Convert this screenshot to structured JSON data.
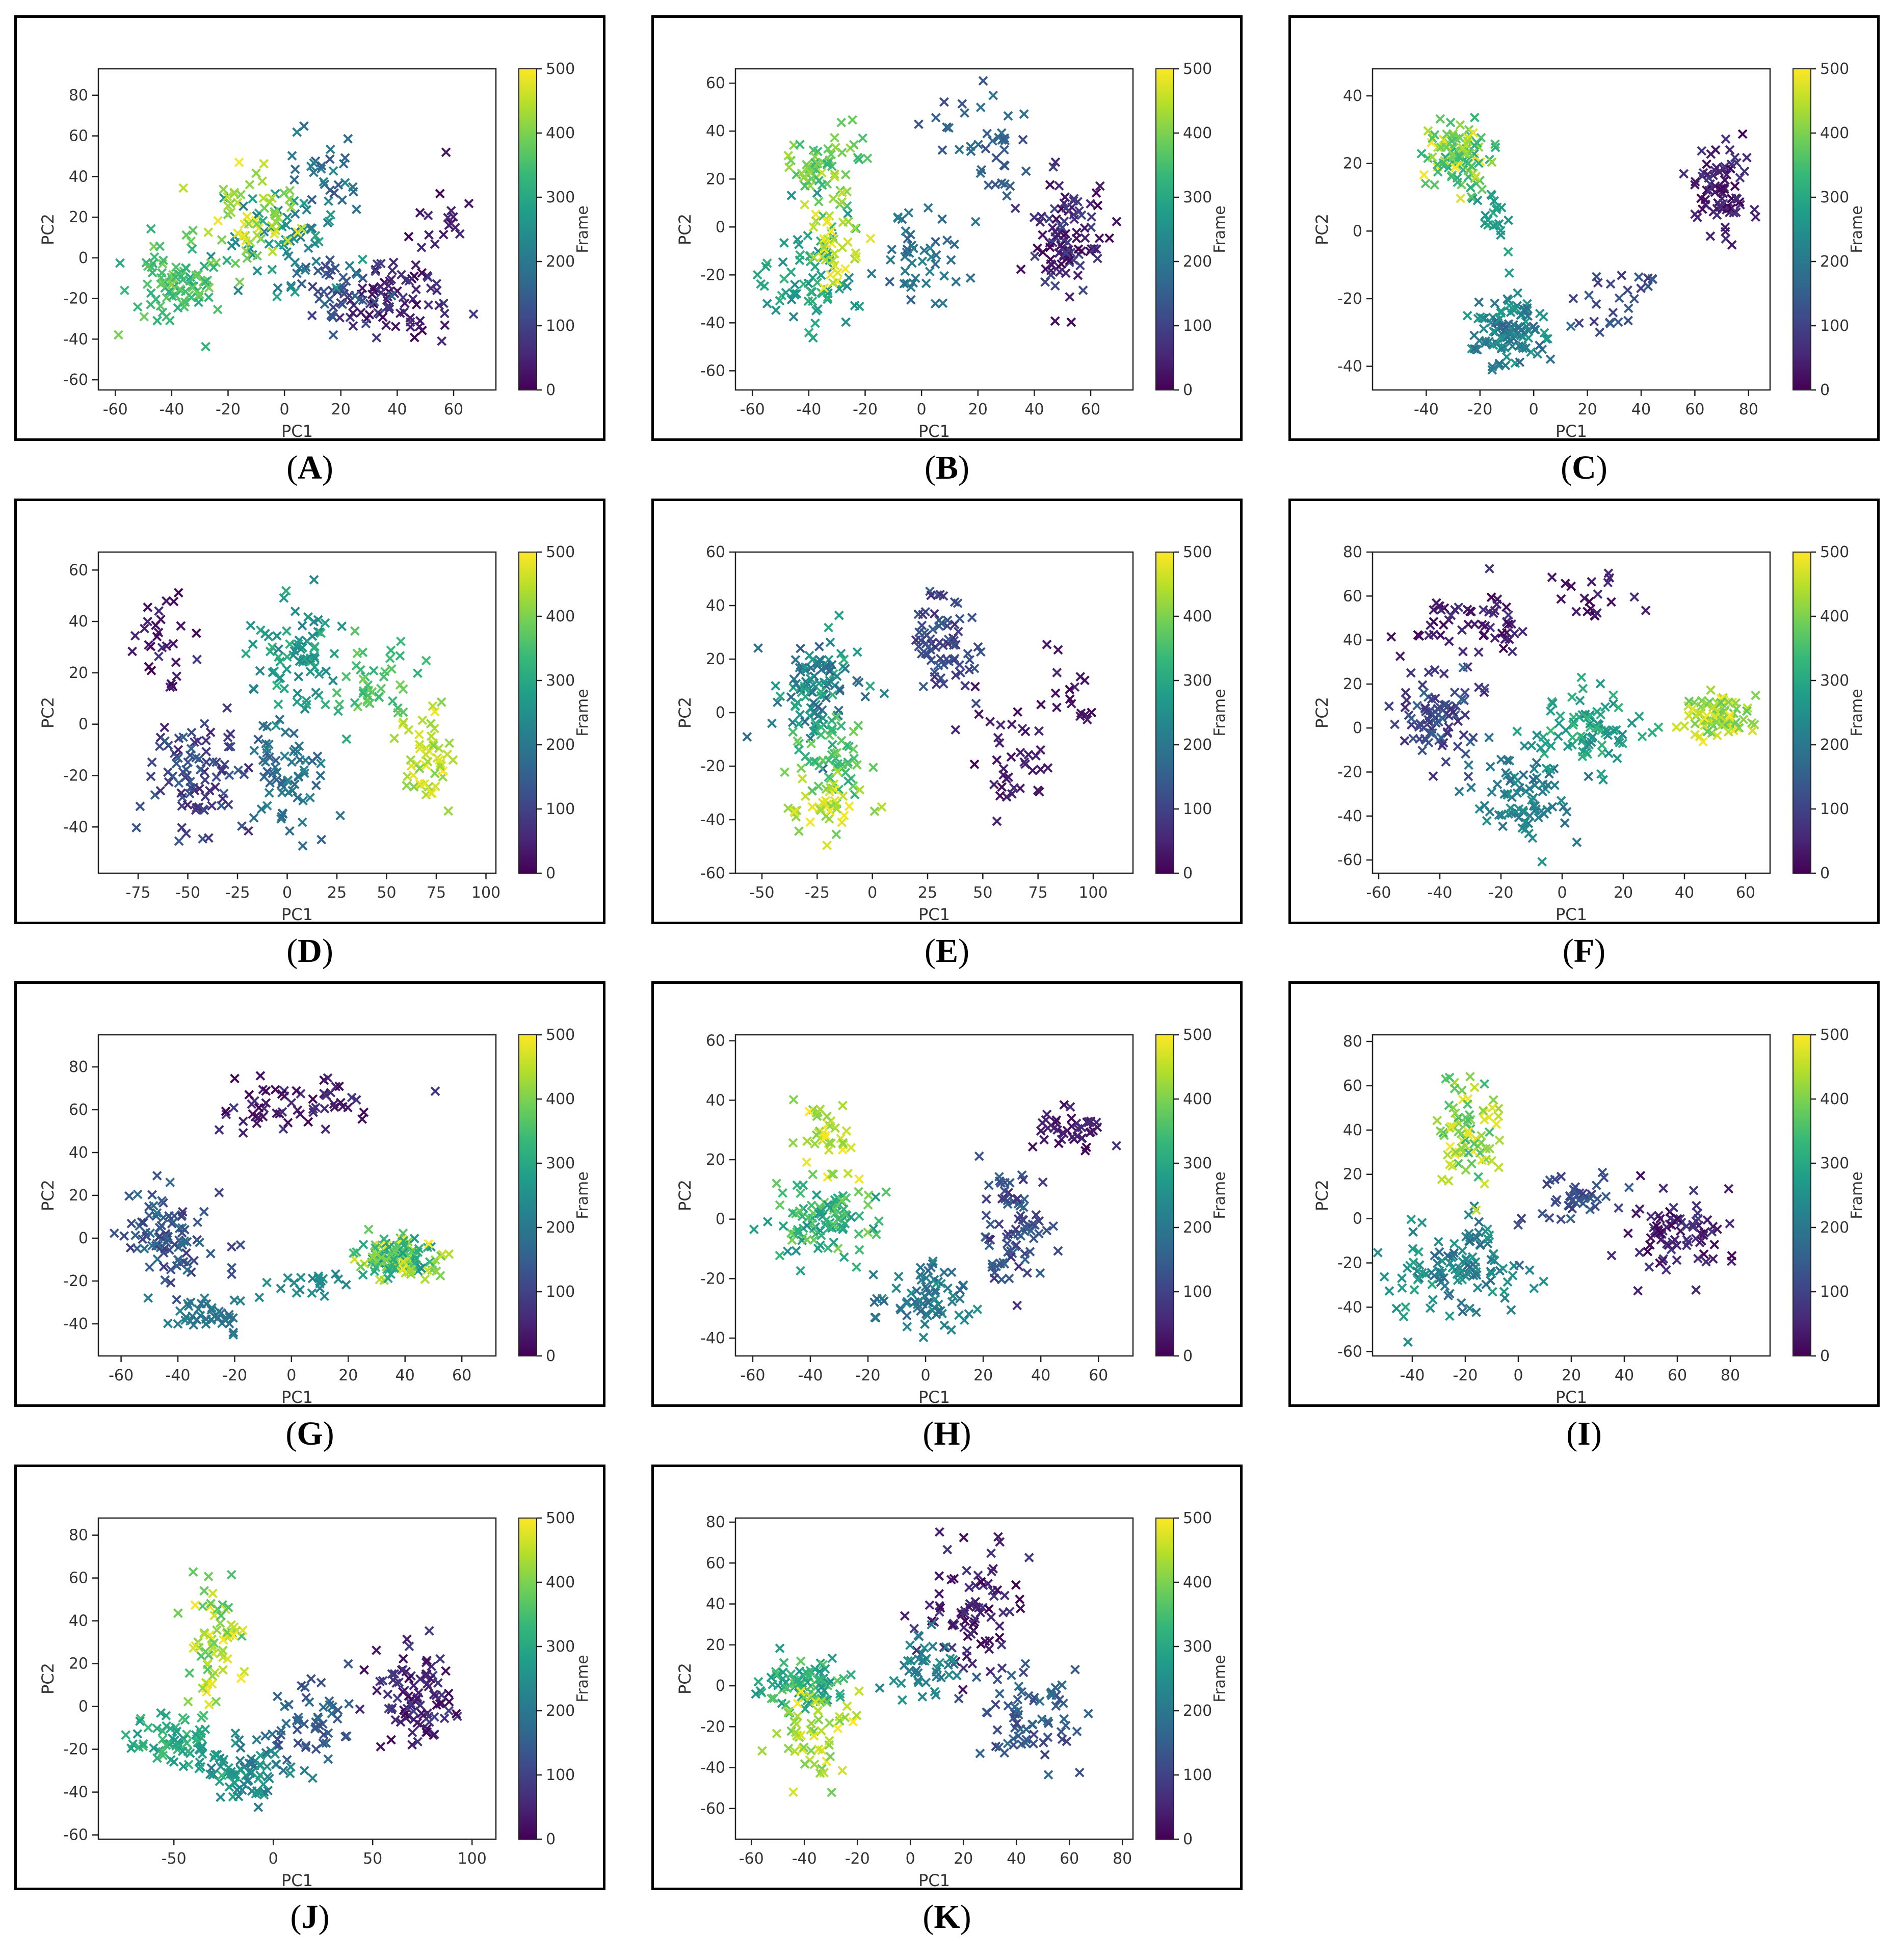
{
  "colormap": [
    "#440154",
    "#482878",
    "#3e4989",
    "#31688e",
    "#26828e",
    "#1f9e89",
    "#35b779",
    "#6ece58",
    "#b5de2b",
    "#fde725"
  ],
  "marker_color_note": "viridis",
  "chart_data": [
    {
      "id": "A",
      "caption": "A",
      "type": "scatter",
      "xlabel": "PC1",
      "ylabel": "PC2",
      "colorbar_label": "Frame",
      "colorbar_range": [
        0,
        500
      ],
      "colorbar_ticks": [
        0,
        100,
        200,
        300,
        400,
        500
      ],
      "xlim": [
        -66,
        75
      ],
      "ylim": [
        -65,
        93
      ],
      "xticks": [
        -60,
        -40,
        -20,
        0,
        20,
        40,
        60
      ],
      "yticks": [
        -60,
        -40,
        -20,
        0,
        20,
        40,
        60,
        80
      ],
      "marker": "x",
      "clusters": [
        {
          "cx": 40,
          "cy": -20,
          "sx": 13,
          "sy": 14,
          "n": 80,
          "f0": 0,
          "f1": 90
        },
        {
          "cx": 55,
          "cy": 25,
          "sx": 6,
          "sy": 15,
          "n": 15,
          "f0": 0,
          "f1": 60
        },
        {
          "cx": 20,
          "cy": -15,
          "sx": 12,
          "sy": 15,
          "n": 40,
          "f0": 90,
          "f1": 170
        },
        {
          "cx": 15,
          "cy": 45,
          "sx": 10,
          "sy": 20,
          "n": 30,
          "f0": 130,
          "f1": 230
        },
        {
          "cx": 0,
          "cy": 10,
          "sx": 14,
          "sy": 15,
          "n": 60,
          "f0": 200,
          "f1": 300
        },
        {
          "cx": -35,
          "cy": -10,
          "sx": 10,
          "sy": 12,
          "n": 70,
          "f0": 300,
          "f1": 400
        },
        {
          "cx": -10,
          "cy": 20,
          "sx": 12,
          "sy": 13,
          "n": 55,
          "f0": 380,
          "f1": 500
        },
        {
          "cx": -40,
          "cy": -25,
          "sx": 10,
          "sy": 15,
          "n": 20,
          "f0": 320,
          "f1": 420
        }
      ]
    },
    {
      "id": "B",
      "caption": "B",
      "type": "scatter",
      "xlabel": "PC1",
      "ylabel": "PC2",
      "colorbar_label": "Frame",
      "colorbar_range": [
        0,
        500
      ],
      "colorbar_ticks": [
        0,
        100,
        200,
        300,
        400,
        500
      ],
      "xlim": [
        -66,
        75
      ],
      "ylim": [
        -68,
        66
      ],
      "xticks": [
        -60,
        -40,
        -20,
        0,
        20,
        40,
        60
      ],
      "yticks": [
        -60,
        -40,
        -20,
        0,
        20,
        40,
        60
      ],
      "marker": "x",
      "clusters": [
        {
          "cx": 52,
          "cy": -5,
          "sx": 9,
          "sy": 15,
          "n": 100,
          "f0": 0,
          "f1": 110
        },
        {
          "cx": 25,
          "cy": 35,
          "sx": 14,
          "sy": 14,
          "n": 40,
          "f0": 110,
          "f1": 190
        },
        {
          "cx": 0,
          "cy": -15,
          "sx": 10,
          "sy": 15,
          "n": 45,
          "f0": 150,
          "f1": 230
        },
        {
          "cx": -40,
          "cy": -20,
          "sx": 12,
          "sy": 15,
          "n": 70,
          "f0": 230,
          "f1": 330
        },
        {
          "cx": -35,
          "cy": 25,
          "sx": 8,
          "sy": 12,
          "n": 60,
          "f0": 330,
          "f1": 430
        },
        {
          "cx": -30,
          "cy": -5,
          "sx": 8,
          "sy": 12,
          "n": 40,
          "f0": 420,
          "f1": 500
        }
      ]
    },
    {
      "id": "C",
      "caption": "C",
      "type": "scatter",
      "xlabel": "PC1",
      "ylabel": "PC2",
      "colorbar_label": "Frame",
      "colorbar_range": [
        0,
        500
      ],
      "colorbar_ticks": [
        0,
        100,
        200,
        300,
        400,
        500
      ],
      "xlim": [
        -60,
        88
      ],
      "ylim": [
        -47,
        48
      ],
      "xticks": [
        -40,
        -20,
        0,
        20,
        40,
        60,
        80
      ],
      "yticks": [
        -40,
        -20,
        0,
        20,
        40
      ],
      "marker": "x",
      "clusters": [
        {
          "cx": 70,
          "cy": 12,
          "sx": 8,
          "sy": 9,
          "n": 80,
          "f0": 0,
          "f1": 80
        },
        {
          "cx": 30,
          "cy": -20,
          "sx": 15,
          "sy": 8,
          "n": 25,
          "f0": 80,
          "f1": 150
        },
        {
          "cx": -10,
          "cy": -30,
          "sx": 9,
          "sy": 7,
          "n": 110,
          "f0": 150,
          "f1": 280
        },
        {
          "cx": -15,
          "cy": 5,
          "sx": 5,
          "sy": 10,
          "n": 20,
          "f0": 250,
          "f1": 320
        },
        {
          "cx": -28,
          "cy": 22,
          "sx": 10,
          "sy": 8,
          "n": 100,
          "f0": 300,
          "f1": 500
        }
      ]
    },
    {
      "id": "D",
      "caption": "D",
      "type": "scatter",
      "xlabel": "PC1",
      "ylabel": "PC2",
      "colorbar_label": "Frame",
      "colorbar_range": [
        0,
        500
      ],
      "colorbar_ticks": [
        0,
        100,
        200,
        300,
        400,
        500
      ],
      "xlim": [
        -95,
        105
      ],
      "ylim": [
        -58,
        67
      ],
      "xticks": [
        -75,
        -50,
        -25,
        0,
        25,
        50,
        75,
        100
      ],
      "yticks": [
        -40,
        -20,
        0,
        20,
        40,
        60
      ],
      "marker": "x",
      "clusters": [
        {
          "cx": -65,
          "cy": 30,
          "sx": 12,
          "sy": 15,
          "n": 30,
          "f0": 0,
          "f1": 80
        },
        {
          "cx": -45,
          "cy": -20,
          "sx": 18,
          "sy": 13,
          "n": 90,
          "f0": 50,
          "f1": 160
        },
        {
          "cx": 0,
          "cy": -20,
          "sx": 15,
          "sy": 13,
          "n": 60,
          "f0": 150,
          "f1": 230
        },
        {
          "cx": 5,
          "cy": 25,
          "sx": 15,
          "sy": 15,
          "n": 80,
          "f0": 220,
          "f1": 330
        },
        {
          "cx": 45,
          "cy": 15,
          "sx": 15,
          "sy": 10,
          "n": 40,
          "f0": 320,
          "f1": 400
        },
        {
          "cx": 70,
          "cy": -15,
          "sx": 10,
          "sy": 12,
          "n": 50,
          "f0": 400,
          "f1": 500
        }
      ]
    },
    {
      "id": "E",
      "caption": "E",
      "type": "scatter",
      "xlabel": "PC1",
      "ylabel": "PC2",
      "colorbar_label": "Frame",
      "colorbar_range": [
        0,
        500
      ],
      "colorbar_ticks": [
        0,
        100,
        200,
        300,
        400,
        500
      ],
      "xlim": [
        -62,
        118
      ],
      "ylim": [
        -60,
        60
      ],
      "xticks": [
        -50,
        -25,
        0,
        25,
        50,
        75,
        100
      ],
      "yticks": [
        -60,
        -40,
        -20,
        0,
        20,
        40,
        60
      ],
      "marker": "x",
      "clusters": [
        {
          "cx": 65,
          "cy": -15,
          "sx": 15,
          "sy": 15,
          "n": 40,
          "f0": 0,
          "f1": 60
        },
        {
          "cx": 90,
          "cy": 5,
          "sx": 8,
          "sy": 12,
          "n": 15,
          "f0": 0,
          "f1": 50
        },
        {
          "cx": 30,
          "cy": 25,
          "sx": 10,
          "sy": 12,
          "n": 70,
          "f0": 60,
          "f1": 150
        },
        {
          "cx": -25,
          "cy": 10,
          "sx": 12,
          "sy": 15,
          "n": 100,
          "f0": 150,
          "f1": 320
        },
        {
          "cx": -20,
          "cy": -15,
          "sx": 10,
          "sy": 12,
          "n": 60,
          "f0": 300,
          "f1": 400
        },
        {
          "cx": -22,
          "cy": -35,
          "sx": 10,
          "sy": 8,
          "n": 40,
          "f0": 400,
          "f1": 500
        }
      ]
    },
    {
      "id": "F",
      "caption": "F",
      "type": "scatter",
      "xlabel": "PC1",
      "ylabel": "PC2",
      "colorbar_label": "Frame",
      "colorbar_range": [
        0,
        500
      ],
      "colorbar_ticks": [
        0,
        100,
        200,
        300,
        400,
        500
      ],
      "xlim": [
        -62,
        68
      ],
      "ylim": [
        -66,
        80
      ],
      "xticks": [
        -60,
        -40,
        -20,
        0,
        20,
        40,
        60
      ],
      "yticks": [
        -60,
        -40,
        -20,
        0,
        20,
        40,
        60,
        80
      ],
      "marker": "x",
      "clusters": [
        {
          "cx": -30,
          "cy": 45,
          "sx": 14,
          "sy": 12,
          "n": 60,
          "f0": 0,
          "f1": 80
        },
        {
          "cx": 10,
          "cy": 60,
          "sx": 10,
          "sy": 8,
          "n": 20,
          "f0": 0,
          "f1": 60
        },
        {
          "cx": -40,
          "cy": 5,
          "sx": 10,
          "sy": 15,
          "n": 80,
          "f0": 60,
          "f1": 170
        },
        {
          "cx": -12,
          "cy": -30,
          "sx": 10,
          "sy": 15,
          "n": 80,
          "f0": 170,
          "f1": 260
        },
        {
          "cx": 10,
          "cy": 0,
          "sx": 12,
          "sy": 12,
          "n": 80,
          "f0": 240,
          "f1": 340
        },
        {
          "cx": 50,
          "cy": 5,
          "sx": 8,
          "sy": 6,
          "n": 80,
          "f0": 370,
          "f1": 500
        }
      ]
    },
    {
      "id": "G",
      "caption": "G",
      "type": "scatter",
      "xlabel": "PC1",
      "ylabel": "PC2",
      "colorbar_label": "Frame",
      "colorbar_range": [
        0,
        500
      ],
      "colorbar_ticks": [
        0,
        100,
        200,
        300,
        400,
        500
      ],
      "xlim": [
        -68,
        72
      ],
      "ylim": [
        -55,
        95
      ],
      "xticks": [
        -60,
        -40,
        -20,
        0,
        20,
        40,
        60
      ],
      "yticks": [
        -40,
        -20,
        0,
        20,
        40,
        60,
        80
      ],
      "marker": "x",
      "clusters": [
        {
          "cx": 0,
          "cy": 62,
          "sx": 20,
          "sy": 8,
          "n": 60,
          "f0": 0,
          "f1": 80
        },
        {
          "cx": -42,
          "cy": 0,
          "sx": 10,
          "sy": 13,
          "n": 90,
          "f0": 80,
          "f1": 190
        },
        {
          "cx": -30,
          "cy": -35,
          "sx": 10,
          "sy": 6,
          "n": 40,
          "f0": 180,
          "f1": 230
        },
        {
          "cx": 5,
          "cy": -22,
          "sx": 12,
          "sy": 4,
          "n": 20,
          "f0": 220,
          "f1": 260
        },
        {
          "cx": 38,
          "cy": -10,
          "sx": 8,
          "sy": 6,
          "n": 140,
          "f0": 250,
          "f1": 500
        }
      ]
    },
    {
      "id": "H",
      "caption": "H",
      "type": "scatter",
      "xlabel": "PC1",
      "ylabel": "PC2",
      "colorbar_label": "Frame",
      "colorbar_range": [
        0,
        500
      ],
      "colorbar_ticks": [
        0,
        100,
        200,
        300,
        400,
        500
      ],
      "xlim": [
        -66,
        72
      ],
      "ylim": [
        -46,
        62
      ],
      "xticks": [
        -60,
        -40,
        -20,
        0,
        20,
        40,
        60
      ],
      "yticks": [
        -40,
        -20,
        0,
        20,
        40,
        60
      ],
      "marker": "x",
      "clusters": [
        {
          "cx": 50,
          "cy": 30,
          "sx": 8,
          "sy": 6,
          "n": 40,
          "f0": 0,
          "f1": 70
        },
        {
          "cx": 30,
          "cy": -5,
          "sx": 8,
          "sy": 14,
          "n": 80,
          "f0": 60,
          "f1": 170
        },
        {
          "cx": 0,
          "cy": -25,
          "sx": 12,
          "sy": 8,
          "n": 70,
          "f0": 160,
          "f1": 260
        },
        {
          "cx": -35,
          "cy": 0,
          "sx": 12,
          "sy": 10,
          "n": 100,
          "f0": 250,
          "f1": 400
        },
        {
          "cx": -35,
          "cy": 28,
          "sx": 7,
          "sy": 9,
          "n": 40,
          "f0": 400,
          "f1": 500
        }
      ]
    },
    {
      "id": "I",
      "caption": "I",
      "type": "scatter",
      "xlabel": "PC1",
      "ylabel": "PC2",
      "colorbar_label": "Frame",
      "colorbar_range": [
        0,
        500
      ],
      "colorbar_ticks": [
        0,
        100,
        200,
        300,
        400,
        500
      ],
      "xlim": [
        -55,
        95
      ],
      "ylim": [
        -62,
        83
      ],
      "xticks": [
        -40,
        -20,
        0,
        20,
        40,
        60,
        80
      ],
      "yticks": [
        -60,
        -40,
        -20,
        0,
        20,
        40,
        60,
        80
      ],
      "marker": "x",
      "clusters": [
        {
          "cx": 60,
          "cy": -5,
          "sx": 12,
          "sy": 12,
          "n": 80,
          "f0": 0,
          "f1": 90
        },
        {
          "cx": 20,
          "cy": 10,
          "sx": 12,
          "sy": 8,
          "n": 40,
          "f0": 90,
          "f1": 160
        },
        {
          "cx": -20,
          "cy": -20,
          "sx": 13,
          "sy": 14,
          "n": 100,
          "f0": 160,
          "f1": 280
        },
        {
          "cx": -40,
          "cy": -30,
          "sx": 6,
          "sy": 12,
          "n": 20,
          "f0": 240,
          "f1": 300
        },
        {
          "cx": -18,
          "cy": 40,
          "sx": 9,
          "sy": 15,
          "n": 80,
          "f0": 330,
          "f1": 500
        }
      ]
    },
    {
      "id": "J",
      "caption": "J",
      "type": "scatter",
      "xlabel": "PC1",
      "ylabel": "PC2",
      "colorbar_label": "Frame",
      "colorbar_range": [
        0,
        500
      ],
      "colorbar_ticks": [
        0,
        100,
        200,
        300,
        400,
        500
      ],
      "xlim": [
        -88,
        112
      ],
      "ylim": [
        -62,
        88
      ],
      "xticks": [
        -50,
        0,
        50,
        100
      ],
      "yticks": [
        -60,
        -40,
        -20,
        0,
        20,
        40,
        60,
        80
      ],
      "marker": "x",
      "clusters": [
        {
          "cx": 70,
          "cy": 5,
          "sx": 15,
          "sy": 15,
          "n": 90,
          "f0": 0,
          "f1": 100
        },
        {
          "cx": 20,
          "cy": -10,
          "sx": 15,
          "sy": 12,
          "n": 50,
          "f0": 100,
          "f1": 190
        },
        {
          "cx": -15,
          "cy": -30,
          "sx": 15,
          "sy": 10,
          "n": 80,
          "f0": 180,
          "f1": 290
        },
        {
          "cx": -50,
          "cy": -15,
          "sx": 15,
          "sy": 10,
          "n": 60,
          "f0": 260,
          "f1": 350
        },
        {
          "cx": -30,
          "cy": 30,
          "sx": 9,
          "sy": 18,
          "n": 70,
          "f0": 350,
          "f1": 500
        }
      ]
    },
    {
      "id": "K",
      "caption": "K",
      "type": "scatter",
      "xlabel": "PC1",
      "ylabel": "PC2",
      "colorbar_label": "Frame",
      "colorbar_range": [
        0,
        500
      ],
      "colorbar_ticks": [
        0,
        100,
        200,
        300,
        400,
        500
      ],
      "xlim": [
        -66,
        84
      ],
      "ylim": [
        -75,
        82
      ],
      "xticks": [
        -60,
        -40,
        -20,
        0,
        20,
        40,
        60,
        80
      ],
      "yticks": [
        -60,
        -40,
        -20,
        0,
        20,
        40,
        60,
        80
      ],
      "marker": "x",
      "clusters": [
        {
          "cx": 25,
          "cy": 35,
          "sx": 12,
          "sy": 20,
          "n": 80,
          "f0": 0,
          "f1": 90
        },
        {
          "cx": 45,
          "cy": -15,
          "sx": 13,
          "sy": 16,
          "n": 70,
          "f0": 90,
          "f1": 190
        },
        {
          "cx": 5,
          "cy": 10,
          "sx": 10,
          "sy": 12,
          "n": 40,
          "f0": 180,
          "f1": 260
        },
        {
          "cx": -40,
          "cy": 0,
          "sx": 12,
          "sy": 10,
          "n": 80,
          "f0": 250,
          "f1": 380
        },
        {
          "cx": -35,
          "cy": -20,
          "sx": 10,
          "sy": 14,
          "n": 60,
          "f0": 380,
          "f1": 500
        }
      ]
    }
  ]
}
